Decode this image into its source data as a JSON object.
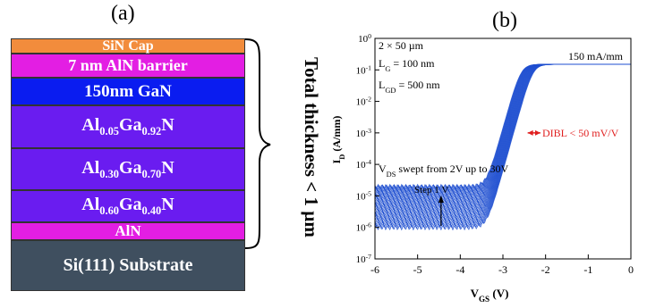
{
  "panel_a": {
    "label": "(a)",
    "layers": [
      {
        "text": "SiN Cap",
        "color": "#f28c3c"
      },
      {
        "text": "7 nm AlN barrier",
        "color": "#e31ee3"
      },
      {
        "text": "150nm GaN",
        "color": "#0a1cf0"
      },
      {
        "base": [
          "Al",
          "Ga",
          "N"
        ],
        "subs": [
          "0.05",
          "0.92"
        ],
        "color": "#6a1cf0"
      },
      {
        "base": [
          "Al",
          "Ga",
          "N"
        ],
        "subs": [
          "0.30",
          "0.70"
        ],
        "color": "#6a1cf0"
      },
      {
        "base": [
          "Al",
          "Ga",
          "N"
        ],
        "subs": [
          "0.60",
          "0.40"
        ],
        "color": "#6a1cf0"
      },
      {
        "text": "AlN",
        "color": "#e31ee3"
      },
      {
        "text": "Si(111) Substrate",
        "color": "#3f4f5f"
      }
    ],
    "brace_label": "Total thickness < 1 µm"
  },
  "panel_b": {
    "label": "(b)",
    "annotations": {
      "dim": "2 × 50 µm",
      "lg": "L",
      "lg_sub": "G",
      "lg_val": " = 100 nm",
      "lgd": "L",
      "lgd_sub": "GD",
      "lgd_val": " = 500 nm",
      "current": "150 mA/mm",
      "dibl": "DIBL < 50 mV/V",
      "vds_main": "V",
      "vds_sub": "DS",
      "vds_rest": " swept from 2V up to 30V",
      "step": "Step 1 V"
    }
  },
  "chart_data": {
    "type": "line",
    "xlabel": "V",
    "xlabel_sub": "GS",
    "xlabel_unit": " (V)",
    "ylabel": "I",
    "ylabel_sub": "D",
    "ylabel_unit": " (A/mm)",
    "xlim": [
      -6,
      0
    ],
    "ylim_log10": [
      -7,
      0
    ],
    "x_ticks": [
      "-6",
      "-5",
      "-4",
      "-3",
      "-2",
      "-1",
      "0"
    ],
    "y_ticks": [
      "10",
      "10",
      "10",
      "10",
      "10",
      "10",
      "10",
      "10"
    ],
    "y_tick_exps": [
      "0",
      "-1",
      "-2",
      "-3",
      "-4",
      "-5",
      "-6",
      "-7"
    ],
    "series_count": 29,
    "vds_range": [
      2,
      30
    ],
    "on_current": 0.15,
    "leakage_range": [
      1e-06,
      2e-05
    ],
    "threshold_voltage_approx": -2.5,
    "colors": {
      "curve": "#1f4fd0",
      "dibl_arrow": "#e02020"
    }
  }
}
